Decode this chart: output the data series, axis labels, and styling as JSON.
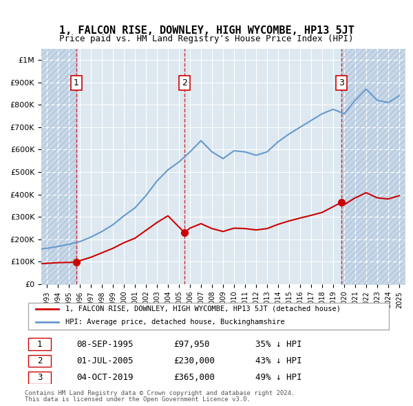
{
  "title": "1, FALCON RISE, DOWNLEY, HIGH WYCOMBE, HP13 5JT",
  "subtitle": "Price paid vs. HM Land Registry's House Price Index (HPI)",
  "ylabel": "",
  "ylim": [
    0,
    1050000
  ],
  "yticks": [
    0,
    100000,
    200000,
    300000,
    400000,
    500000,
    600000,
    700000,
    800000,
    900000,
    1000000
  ],
  "ytick_labels": [
    "£0",
    "£100K",
    "£200K",
    "£300K",
    "£400K",
    "£500K",
    "£600K",
    "£700K",
    "£800K",
    "£900K",
    "£1M"
  ],
  "xlim_start": 1992.5,
  "xlim_end": 2025.5,
  "sale_dates": [
    1995.69,
    2005.5,
    2019.75
  ],
  "sale_prices": [
    97950,
    230000,
    365000
  ],
  "sale_labels": [
    "1",
    "2",
    "3"
  ],
  "sale_date_str": [
    "08-SEP-1995",
    "01-JUL-2005",
    "04-OCT-2019"
  ],
  "sale_price_str": [
    "£97,950",
    "£230,000",
    "£365,000"
  ],
  "sale_below_str": [
    "35% ↓ HPI",
    "43% ↓ HPI",
    "49% ↓ HPI"
  ],
  "red_line_color": "#cc0000",
  "blue_line_color": "#6699cc",
  "background_plot": "#dde8f0",
  "background_hatch": "#c8d8e8",
  "grid_color": "#ffffff",
  "legend_label_red": "1, FALCON RISE, DOWNLEY, HIGH WYCOMBE, HP13 5JT (detached house)",
  "legend_label_blue": "HPI: Average price, detached house, Buckinghamshire",
  "footer1": "Contains HM Land Registry data © Crown copyright and database right 2024.",
  "footer2": "This data is licensed under the Open Government Licence v3.0.",
  "hpi_years": [
    1992,
    1993,
    1994,
    1995,
    1996,
    1997,
    1998,
    1999,
    2000,
    2001,
    2002,
    2003,
    2004,
    2005,
    2006,
    2007,
    2008,
    2009,
    2010,
    2011,
    2012,
    2013,
    2014,
    2015,
    2016,
    2017,
    2018,
    2019,
    2020,
    2021,
    2022,
    2023,
    2024,
    2025
  ],
  "hpi_values": [
    155000,
    160000,
    168000,
    178000,
    190000,
    210000,
    235000,
    265000,
    305000,
    340000,
    395000,
    460000,
    510000,
    545000,
    590000,
    640000,
    590000,
    560000,
    595000,
    590000,
    575000,
    590000,
    635000,
    670000,
    700000,
    730000,
    760000,
    780000,
    760000,
    820000,
    870000,
    820000,
    810000,
    840000
  ],
  "red_line_years": [
    1992,
    1993,
    1994,
    1995.69,
    1996,
    1997,
    1998,
    1999,
    2000,
    2001,
    2002,
    2003,
    2004,
    2005.5,
    2006,
    2007,
    2008,
    2009,
    2010,
    2011,
    2012,
    2013,
    2014,
    2015,
    2016,
    2017,
    2018,
    2019.75,
    2020,
    2021,
    2022,
    2023,
    2024,
    2025
  ],
  "red_line_values": [
    90000,
    93000,
    96000,
    97950,
    105000,
    120000,
    140000,
    160000,
    185000,
    205000,
    240000,
    275000,
    305000,
    230000,
    250000,
    270000,
    248000,
    235000,
    250000,
    248000,
    242000,
    248000,
    267000,
    282000,
    295000,
    307000,
    320000,
    365000,
    355000,
    385000,
    408000,
    385000,
    380000,
    395000
  ]
}
